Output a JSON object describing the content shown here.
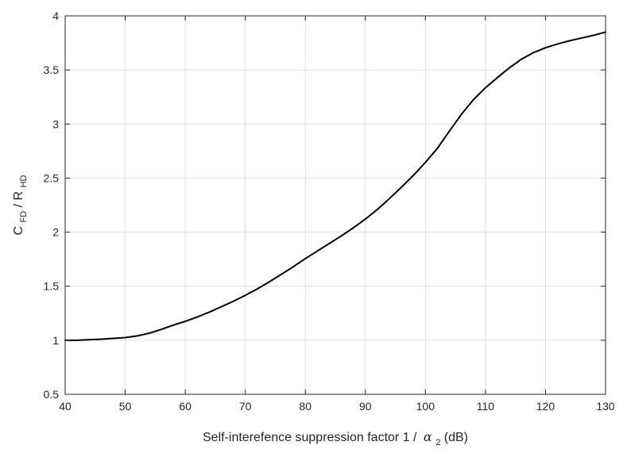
{
  "chart_data": {
    "type": "line",
    "title": "",
    "xlabel": {
      "prefix": "Self-interefence suppression factor 1 / ",
      "symbol": "α",
      "subscript": "2",
      "suffix": " (dB)"
    },
    "ylabel": {
      "c": "C",
      "c_sub": "FD",
      "sep": " / ",
      "r": "R",
      "r_sub": "HD"
    },
    "xlim": [
      40,
      130
    ],
    "ylim": [
      0.5,
      4
    ],
    "xticks": [
      40,
      50,
      60,
      70,
      80,
      90,
      100,
      110,
      120,
      130
    ],
    "yticks": [
      0.5,
      1,
      1.5,
      2,
      2.5,
      3,
      3.5,
      4
    ],
    "grid": true,
    "line_color": "#000000",
    "series": [
      {
        "x": [
          40,
          42,
          44,
          46,
          48,
          50,
          52,
          54,
          56,
          58,
          60,
          62,
          64,
          66,
          68,
          70,
          72,
          74,
          76,
          78,
          80,
          82,
          84,
          86,
          88,
          90,
          92,
          94,
          96,
          98,
          100,
          102,
          104,
          106,
          108,
          110,
          112,
          114,
          116,
          118,
          120,
          122,
          124,
          126,
          128,
          130
        ],
        "y": [
          1.0,
          1.0,
          1.005,
          1.01,
          1.017,
          1.025,
          1.04,
          1.065,
          1.1,
          1.14,
          1.175,
          1.215,
          1.26,
          1.31,
          1.36,
          1.415,
          1.475,
          1.54,
          1.61,
          1.68,
          1.755,
          1.825,
          1.895,
          1.965,
          2.04,
          2.12,
          2.21,
          2.31,
          2.415,
          2.525,
          2.645,
          2.775,
          2.935,
          3.09,
          3.225,
          3.335,
          3.43,
          3.52,
          3.6,
          3.66,
          3.705,
          3.74,
          3.77,
          3.795,
          3.82,
          3.85
        ]
      }
    ]
  }
}
